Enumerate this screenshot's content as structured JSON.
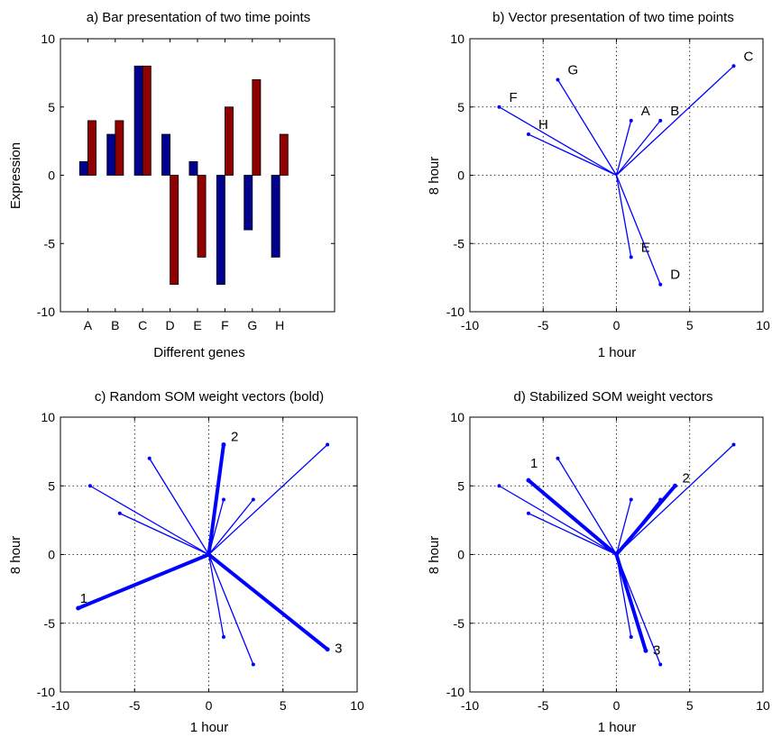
{
  "chart_data": [
    {
      "panel": "a",
      "type": "bar",
      "title": "a) Bar presentation of two time points",
      "xlabel": "Different genes",
      "ylabel": "Expression",
      "categories": [
        "A",
        "B",
        "C",
        "D",
        "E",
        "F",
        "G",
        "H"
      ],
      "xlim": [
        0,
        10
      ],
      "ylim": [
        -10,
        10
      ],
      "yticks": [
        -10,
        -5,
        0,
        5,
        10
      ],
      "grid": false,
      "series": [
        {
          "values": [
            1,
            3,
            8,
            3,
            1,
            -8,
            -4,
            -6
          ],
          "color": "#00008f"
        },
        {
          "values": [
            4,
            4,
            8,
            -8,
            -6,
            5,
            7,
            3
          ],
          "color": "#8f0000"
        }
      ]
    },
    {
      "panel": "b",
      "type": "line",
      "title": "b) Vector presentation of two time points",
      "xlabel": "1 hour",
      "ylabel": "8 hour",
      "xlim": [
        -10,
        10
      ],
      "ylim": [
        -10,
        10
      ],
      "xticks": [
        -10,
        -5,
        0,
        5,
        10
      ],
      "yticks": [
        -10,
        -5,
        0,
        5,
        10
      ],
      "grid": true,
      "color": "#0000ff",
      "vectors": [
        {
          "label": "A",
          "x": 1,
          "y": 4
        },
        {
          "label": "B",
          "x": 3,
          "y": 4
        },
        {
          "label": "C",
          "x": 8,
          "y": 8
        },
        {
          "label": "D",
          "x": 3,
          "y": -8
        },
        {
          "label": "E",
          "x": 1,
          "y": -6
        },
        {
          "label": "F",
          "x": -8,
          "y": 5
        },
        {
          "label": "G",
          "x": -4,
          "y": 7
        },
        {
          "label": "H",
          "x": -6,
          "y": 3
        }
      ]
    },
    {
      "panel": "c",
      "type": "line",
      "title": "c) Random SOM weight vectors (bold)",
      "xlabel": "1 hour",
      "ylabel": "8 hour",
      "xlim": [
        -10,
        10
      ],
      "ylim": [
        -10,
        10
      ],
      "xticks": [
        -10,
        -5,
        0,
        5,
        10
      ],
      "yticks": [
        -10,
        -5,
        0,
        5,
        10
      ],
      "grid": true,
      "color": "#0000ff",
      "vectors": [
        {
          "x": 1,
          "y": 4
        },
        {
          "x": 3,
          "y": 4
        },
        {
          "x": 8,
          "y": 8
        },
        {
          "x": 3,
          "y": -8
        },
        {
          "x": 1,
          "y": -6
        },
        {
          "x": -8,
          "y": 5
        },
        {
          "x": -4,
          "y": 7
        },
        {
          "x": -6,
          "y": 3
        }
      ],
      "weights": [
        {
          "label": "1",
          "x": -8.8,
          "y": -3.9
        },
        {
          "label": "2",
          "x": 1,
          "y": 8
        },
        {
          "label": "3",
          "x": 8,
          "y": -6.9
        }
      ]
    },
    {
      "panel": "d",
      "type": "line",
      "title": "d) Stabilized SOM weight vectors",
      "xlabel": "1 hour",
      "ylabel": "8 hour",
      "xlim": [
        -10,
        10
      ],
      "ylim": [
        -10,
        10
      ],
      "xticks": [
        -10,
        -5,
        0,
        5,
        10
      ],
      "yticks": [
        -10,
        -5,
        0,
        5,
        10
      ],
      "grid": true,
      "color": "#0000ff",
      "vectors": [
        {
          "x": 1,
          "y": 4
        },
        {
          "x": 3,
          "y": 4
        },
        {
          "x": 8,
          "y": 8
        },
        {
          "x": 3,
          "y": -8
        },
        {
          "x": 1,
          "y": -6
        },
        {
          "x": -8,
          "y": 5
        },
        {
          "x": -4,
          "y": 7
        },
        {
          "x": -6,
          "y": 3
        }
      ],
      "weights": [
        {
          "label": "1",
          "x": -6,
          "y": 5.4
        },
        {
          "label": "2",
          "x": 4,
          "y": 5
        },
        {
          "label": "3",
          "x": 2,
          "y": -7
        }
      ]
    }
  ]
}
